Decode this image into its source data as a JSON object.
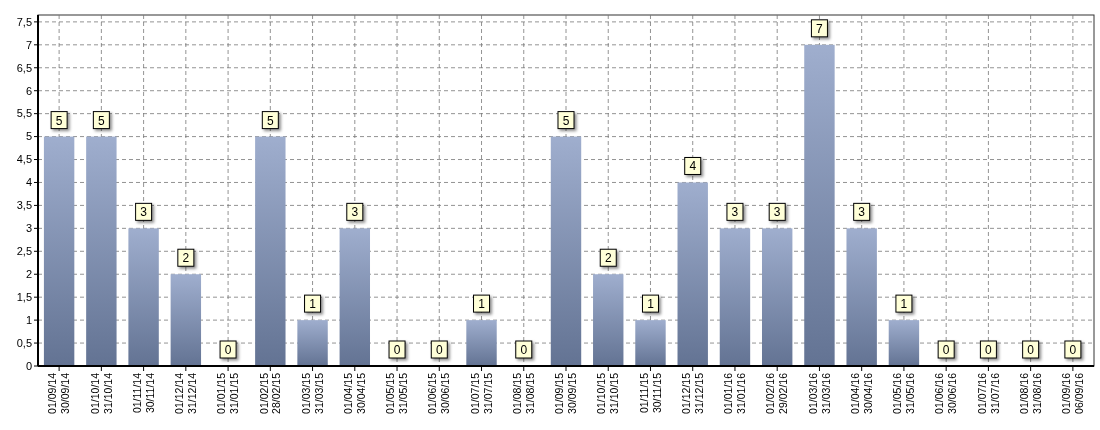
{
  "chart_data": {
    "type": "bar",
    "categories": [
      "01/09/14\n30/09/14",
      "01/10/14\n31/10/14",
      "01/11/14\n30/11/14",
      "01/12/14\n31/12/14",
      "01/01/15\n31/01/15",
      "01/02/15\n28/02/15",
      "01/03/15\n31/03/15",
      "01/04/15\n30/04/15",
      "01/05/15\n31/05/15",
      "01/06/15\n30/06/15",
      "01/07/15\n31/07/15",
      "01/08/15\n31/08/15",
      "01/09/15\n30/09/15",
      "01/10/15\n31/10/15",
      "01/11/15\n30/11/15",
      "01/12/15\n31/12/15",
      "01/01/16\n31/01/16",
      "01/02/16\n29/02/16",
      "01/03/16\n31/03/16",
      "01/04/16\n30/04/16",
      "01/05/16\n31/05/16",
      "01/06/16\n30/06/16",
      "01/07/16\n31/07/16",
      "01/08/16\n31/08/16",
      "01/09/16\n06/09/16"
    ],
    "values": [
      5,
      5,
      3,
      2,
      0,
      5,
      1,
      3,
      0,
      0,
      1,
      0,
      5,
      2,
      1,
      4,
      3,
      3,
      7,
      3,
      1,
      0,
      0,
      0,
      0
    ],
    "color": "#7f93bd",
    "ylim": [
      0,
      7.65
    ],
    "yticks": [
      0,
      {
        "value": 0.5,
        "label": "0,5"
      },
      1,
      {
        "value": 1.5,
        "label": "1,5"
      },
      2,
      {
        "value": 2.5,
        "label": "2,5"
      },
      3,
      {
        "value": 3.5,
        "label": "3,5"
      },
      4,
      {
        "value": 4.5,
        "label": "4,5"
      },
      5,
      {
        "value": 5.5,
        "label": "5,5"
      },
      6,
      {
        "value": 6.5,
        "label": "6,5"
      },
      7,
      {
        "value": 7.5,
        "label": "7,5"
      }
    ],
    "grid": true,
    "data_labels": true
  }
}
